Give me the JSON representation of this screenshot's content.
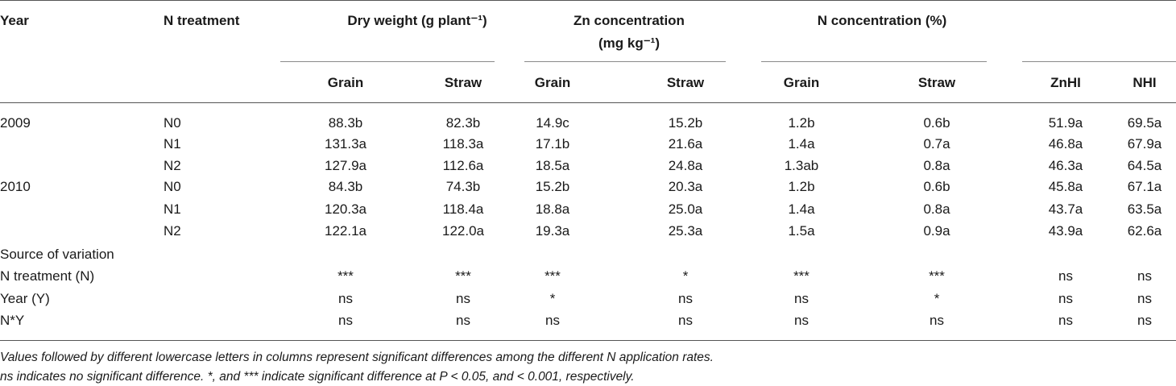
{
  "header": {
    "year": "Year",
    "n_treatment": "N treatment",
    "dry_weight": "Dry weight (g plant⁻¹)",
    "zn_conc_line1": "Zn concentration",
    "zn_conc_line2": "(mg kg⁻¹)",
    "n_conc": "N concentration (%)",
    "sub": [
      "Grain",
      "Straw",
      "Grain",
      "Straw",
      "Grain",
      "Straw",
      "ZnHI",
      "NHI"
    ]
  },
  "rows": [
    {
      "year": "2009",
      "trt": "N0",
      "v": [
        "88.3b",
        "82.3b",
        "14.9c",
        "15.2b",
        "1.2b",
        "0.6b",
        "51.9a",
        "69.5a"
      ]
    },
    {
      "year": "",
      "trt": "N1",
      "v": [
        "131.3a",
        "118.3a",
        "17.1b",
        "21.6a",
        "1.4a",
        "0.7a",
        "46.8a",
        "67.9a"
      ]
    },
    {
      "year": "",
      "trt": "N2",
      "v": [
        "127.9a",
        "112.6a",
        "18.5a",
        "24.8a",
        "1.3ab",
        "0.8a",
        "46.3a",
        "64.5a"
      ]
    },
    {
      "year": "2010",
      "trt": "N0",
      "v": [
        "84.3b",
        "74.3b",
        "15.2b",
        "20.3a",
        "1.2b",
        "0.6b",
        "45.8a",
        "67.1a"
      ]
    },
    {
      "year": "",
      "trt": "N1",
      "v": [
        "120.3a",
        "118.4a",
        "18.8a",
        "25.0a",
        "1.4a",
        "0.8a",
        "43.7a",
        "63.5a"
      ]
    },
    {
      "year": "",
      "trt": "N2",
      "v": [
        "122.1a",
        "122.0a",
        "19.3a",
        "25.3a",
        "1.5a",
        "0.9a",
        "43.9a",
        "62.6a"
      ]
    }
  ],
  "source_label": "Source of variation",
  "sov_rows": [
    {
      "label": "N treatment (N)",
      "v": [
        "***",
        "***",
        "***",
        "*",
        "***",
        "***",
        "ns",
        "ns"
      ]
    },
    {
      "label": "Year (Y)",
      "v": [
        "ns",
        "ns",
        "*",
        "ns",
        "ns",
        "*",
        "ns",
        "ns"
      ]
    },
    {
      "label": "N*Y",
      "v": [
        "ns",
        "ns",
        "ns",
        "ns",
        "ns",
        "ns",
        "ns",
        "ns"
      ]
    }
  ],
  "footnotes": [
    "Values followed by different lowercase letters in columns represent significant differences among the different N application rates.",
    "ns indicates no significant difference. *, and *** indicate significant difference at P < 0.05, and < 0.001, respectively."
  ]
}
